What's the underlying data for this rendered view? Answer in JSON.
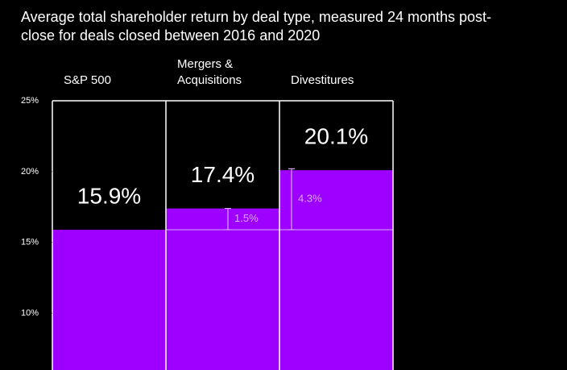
{
  "chart_data": {
    "type": "bar",
    "title": "Average total shareholder return by deal type, measured 24 months post-close for deals closed between 2016 and 2020",
    "categories": [
      "S&P 500",
      "Mergers & Acquisitions",
      "Divestitures"
    ],
    "values": [
      15.9,
      17.4,
      20.1
    ],
    "value_labels": [
      "15.9%",
      "17.4%",
      "20.1%"
    ],
    "color": "#9d00ff",
    "differences": {
      "values": [
        null,
        1.5,
        4.3
      ],
      "value_labels": [
        null,
        "1.5%",
        "4.3%"
      ],
      "color": "#d9a6ff"
    },
    "ylim": [
      6,
      25
    ],
    "yticks": [
      {
        "value": 10,
        "label": "10%"
      },
      {
        "value": 15,
        "label": "15%"
      },
      {
        "value": 20,
        "label": "20%"
      },
      {
        "value": 25,
        "label": "25%"
      }
    ]
  }
}
